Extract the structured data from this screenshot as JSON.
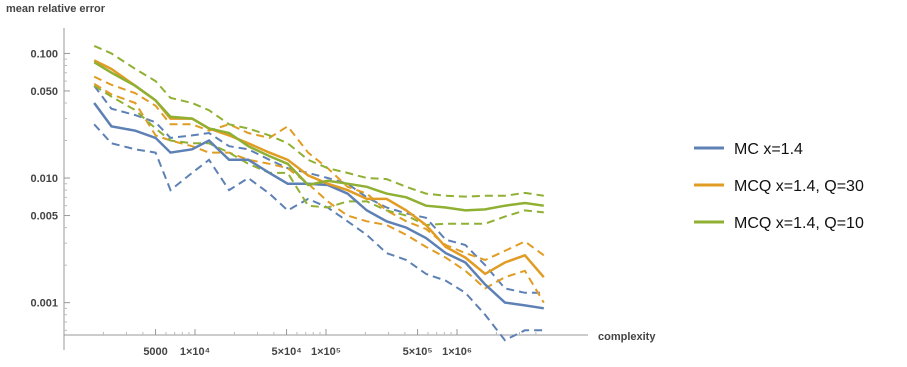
{
  "chart_data": {
    "type": "line",
    "title": "",
    "xlabel": "complexity",
    "ylabel": "mean relative error",
    "xscale": "log",
    "yscale": "log",
    "xlim": [
      1000,
      10000000
    ],
    "ylim": [
      0.00055,
      0.16
    ],
    "grid": false,
    "legend_position": "right",
    "x_ticks": [
      {
        "value": 5000,
        "label": "5000"
      },
      {
        "value": 10000,
        "label": "1×10⁴"
      },
      {
        "value": 50000,
        "label": "5×10⁴"
      },
      {
        "value": 100000,
        "label": "1×10⁵"
      },
      {
        "value": 500000,
        "label": "5×10⁵"
      },
      {
        "value": 1000000,
        "label": "1×10⁶"
      }
    ],
    "y_ticks": [
      {
        "value": 0.001,
        "label": "0.001"
      },
      {
        "value": 0.005,
        "label": "0.005"
      },
      {
        "value": 0.01,
        "label": "0.010"
      },
      {
        "value": 0.05,
        "label": "0.050"
      },
      {
        "value": 0.1,
        "label": "0.100"
      }
    ],
    "x": [
      1700,
      2300,
      3500,
      5000,
      6500,
      9500,
      12800,
      18200,
      25500,
      37000,
      51000,
      73000,
      103000,
      146000,
      205000,
      290000,
      410000,
      580000,
      820000,
      1160000,
      1640000,
      2320000,
      3300000,
      4600000
    ],
    "series": [
      {
        "name": "MC x=1.4",
        "color": "#5e81b5",
        "values": [
          0.04,
          0.026,
          0.024,
          0.021,
          0.016,
          0.017,
          0.02,
          0.014,
          0.014,
          0.011,
          0.009,
          0.009,
          0.0088,
          0.0075,
          0.0055,
          0.0045,
          0.004,
          0.0033,
          0.0025,
          0.0021,
          0.0014,
          0.001,
          0.00095,
          0.0009
        ],
        "upper": [
          0.055,
          0.036,
          0.032,
          0.028,
          0.021,
          0.022,
          0.023,
          0.018,
          0.017,
          0.014,
          0.012,
          0.011,
          0.01,
          0.009,
          0.007,
          0.0058,
          0.0052,
          0.0048,
          0.0032,
          0.0029,
          0.002,
          0.0013,
          0.0012,
          0.0012
        ],
        "lower": [
          0.027,
          0.019,
          0.017,
          0.016,
          0.008,
          0.011,
          0.014,
          0.008,
          0.01,
          0.0075,
          0.0055,
          0.0068,
          0.0058,
          0.0045,
          0.0035,
          0.0025,
          0.0022,
          0.0017,
          0.0015,
          0.0012,
          0.0008,
          0.0005,
          0.0006,
          0.0006
        ]
      },
      {
        "name": "MCQ x=1.4, Q=30",
        "color": "#e19c24",
        "values": [
          0.088,
          0.075,
          0.055,
          0.042,
          0.03,
          0.03,
          0.025,
          0.022,
          0.019,
          0.016,
          0.014,
          0.0105,
          0.009,
          0.008,
          0.0068,
          0.0068,
          0.0055,
          0.0042,
          0.0028,
          0.0023,
          0.0017,
          0.0021,
          0.0024,
          0.0016
        ],
        "upper": [
          0.065,
          0.056,
          0.048,
          0.038,
          0.027,
          0.027,
          0.024,
          0.027,
          0.023,
          0.021,
          0.026,
          0.016,
          0.012,
          0.0085,
          0.0075,
          0.0055,
          0.0045,
          0.0039,
          0.0029,
          0.0025,
          0.0022,
          0.0026,
          0.0031,
          0.0024
        ],
        "lower": [
          0.057,
          0.047,
          0.04,
          0.022,
          0.02,
          0.018,
          0.016,
          0.016,
          0.014,
          0.013,
          0.012,
          0.009,
          0.0065,
          0.005,
          0.0045,
          0.0042,
          0.0035,
          0.0028,
          0.0023,
          0.0018,
          0.0013,
          0.0016,
          0.0018,
          0.001
        ]
      },
      {
        "name": "MCQ x=1.4, Q=10",
        "color": "#8fb032",
        "values": [
          0.085,
          0.07,
          0.055,
          0.042,
          0.031,
          0.03,
          0.025,
          0.023,
          0.018,
          0.015,
          0.013,
          0.0088,
          0.0095,
          0.009,
          0.0085,
          0.0075,
          0.007,
          0.006,
          0.0058,
          0.0055,
          0.0056,
          0.006,
          0.0063,
          0.006
        ],
        "upper": [
          0.115,
          0.1,
          0.075,
          0.06,
          0.044,
          0.04,
          0.035,
          0.027,
          0.025,
          0.022,
          0.019,
          0.014,
          0.012,
          0.011,
          0.01,
          0.0098,
          0.0085,
          0.0075,
          0.0072,
          0.0071,
          0.0072,
          0.0072,
          0.0076,
          0.0072
        ],
        "lower": [
          0.055,
          0.045,
          0.035,
          0.025,
          0.02,
          0.019,
          0.019,
          0.016,
          0.013,
          0.011,
          0.011,
          0.006,
          0.0058,
          0.0065,
          0.0065,
          0.0055,
          0.005,
          0.0042,
          0.0043,
          0.0043,
          0.0043,
          0.0049,
          0.0055,
          0.0053
        ]
      }
    ]
  }
}
